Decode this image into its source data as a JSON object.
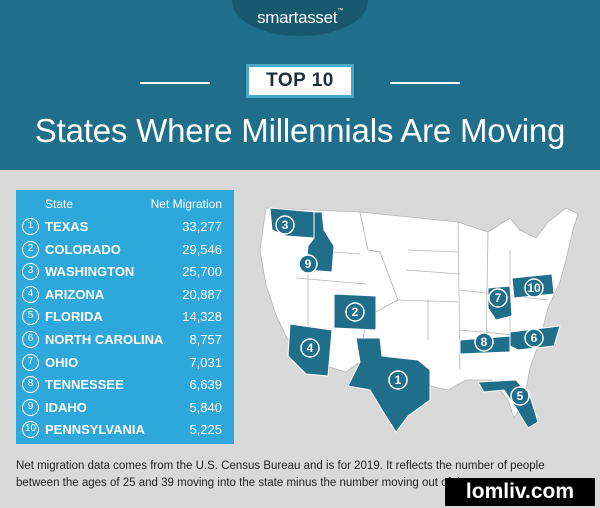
{
  "header": {
    "logo": "smartasset",
    "logo_tm": "™",
    "badge": "TOP 10",
    "title": "States Where Millennials Are Moving"
  },
  "table": {
    "col_state": "State",
    "col_value": "Net Migration",
    "rows": [
      {
        "rank": "1",
        "state": "TEXAS",
        "value": "33,277"
      },
      {
        "rank": "2",
        "state": "COLORADO",
        "value": "29,546"
      },
      {
        "rank": "3",
        "state": "WASHINGTON",
        "value": "25,700"
      },
      {
        "rank": "4",
        "state": "ARIZONA",
        "value": "20,887"
      },
      {
        "rank": "5",
        "state": "FLORIDA",
        "value": "14,328"
      },
      {
        "rank": "6",
        "state": "NORTH CAROLINA",
        "value": "8,757"
      },
      {
        "rank": "7",
        "state": "OHIO",
        "value": "7,031"
      },
      {
        "rank": "8",
        "state": "TENNESSEE",
        "value": "6,639"
      },
      {
        "rank": "9",
        "state": "IDAHO",
        "value": "5,840"
      },
      {
        "rank": "10",
        "state": "PENNSYLVANIA",
        "value": "5,225"
      }
    ]
  },
  "map": {
    "markers": [
      "1",
      "2",
      "3",
      "4",
      "5",
      "6",
      "7",
      "8",
      "9",
      "10"
    ],
    "highlight_color": "#1f6e8a",
    "base_color": "#ffffff"
  },
  "footnote": "Net migration data comes from the U.S. Census Bureau and is for 2019. It reflects the number of people between the ages of 25 and 39 moving into the state minus the number moving out of the state.",
  "watermark": "lomliv.com"
}
